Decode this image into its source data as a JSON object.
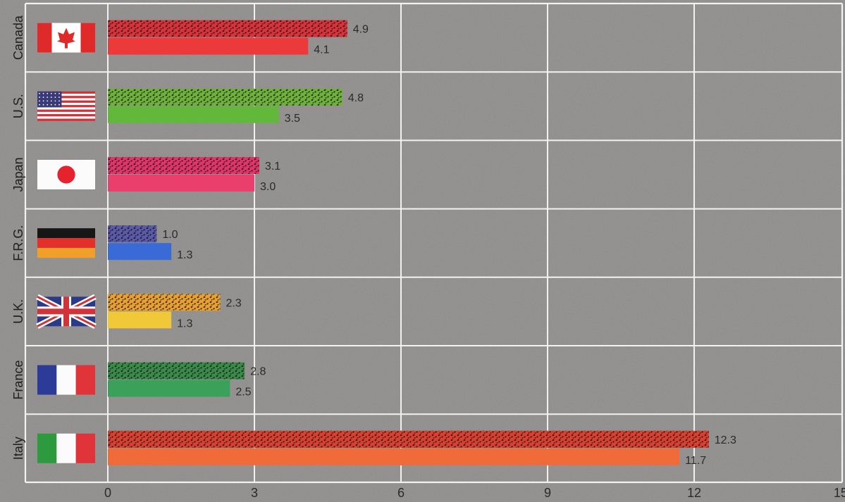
{
  "chart_data": {
    "type": "bar",
    "orientation": "horizontal",
    "categories": [
      "Canada",
      "U.S.",
      "Japan",
      "F.R.G.",
      "U.K.",
      "France",
      "Italy"
    ],
    "series": [
      {
        "values": [
          4.9,
          4.8,
          3.1,
          1.0,
          2.3,
          2.8,
          12.3
        ],
        "labels": [
          "4.9",
          "4.8",
          "3.1",
          "1.0",
          "2.3",
          "2.8",
          "12.3"
        ],
        "pattern": "speckled"
      },
      {
        "values": [
          4.1,
          3.5,
          3.0,
          1.3,
          1.3,
          2.5,
          11.7
        ],
        "labels": [
          "4.1",
          "3.5",
          "3.0",
          "1.3",
          "1.3",
          "2.5",
          "11.7"
        ],
        "pattern": "solid"
      }
    ],
    "bar_colors": {
      "speckled": [
        "#d8323a",
        "#6fb23a",
        "#e0356a",
        "#5a5aa8",
        "#e8a030",
        "#3a8a4a",
        "#d84030"
      ],
      "solid": [
        "#ec3a3a",
        "#62b83a",
        "#ea3e6c",
        "#3a6ad8",
        "#f0c838",
        "#3aa05a",
        "#f06a3a"
      ]
    },
    "flags": [
      "canada-flag",
      "us-flag",
      "japan-flag",
      "germany-flag",
      "uk-flag",
      "france-flag",
      "italy-flag"
    ],
    "xlim": [
      -1.5,
      15
    ],
    "xticks": [
      "0",
      "3",
      "6",
      "9",
      "12",
      "15"
    ],
    "xlabel": "",
    "ylabel": "",
    "title": "",
    "grid": true,
    "colors": {
      "background": "#8f8d8b",
      "grid": "#f2f2f2",
      "text": "#2a2a2a"
    }
  }
}
